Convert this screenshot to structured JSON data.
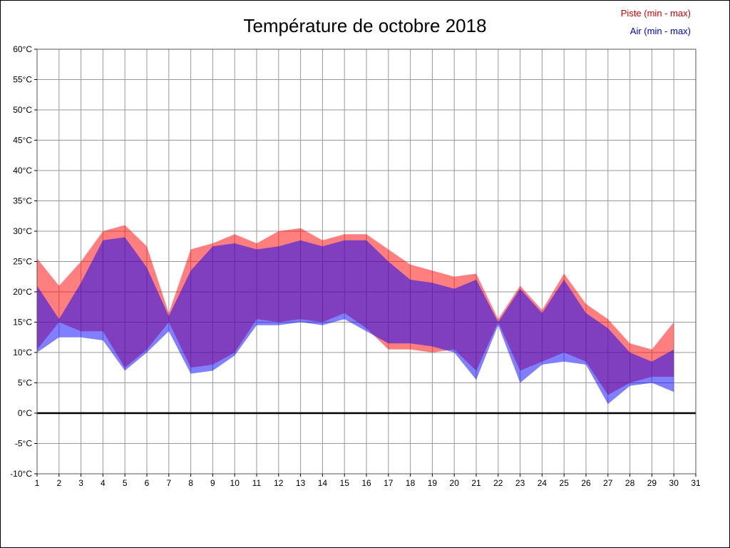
{
  "chart_data": {
    "type": "area",
    "title": "Température de octobre 2018",
    "legend": [
      {
        "label": "Piste (min - max)",
        "color": "#cc0000"
      },
      {
        "label": "Air (min - max)",
        "color": "#0000cc"
      }
    ],
    "xlabel": "",
    "ylabel": "",
    "xlim": [
      1,
      31
    ],
    "ylim": [
      -10,
      60
    ],
    "grid": true,
    "grid_color": "#999999",
    "x_tick_values": [
      1,
      2,
      3,
      4,
      5,
      6,
      7,
      8,
      9,
      10,
      11,
      12,
      13,
      14,
      15,
      16,
      17,
      18,
      19,
      20,
      21,
      22,
      23,
      24,
      25,
      26,
      27,
      28,
      29,
      30,
      31
    ],
    "y_tick_values": [
      60,
      55,
      50,
      45,
      40,
      35,
      30,
      25,
      20,
      15,
      10,
      5,
      0,
      -5,
      -10
    ],
    "y_tick_suffix": "°C",
    "days": [
      1,
      2,
      3,
      4,
      5,
      6,
      7,
      8,
      9,
      10,
      11,
      12,
      13,
      14,
      15,
      16,
      17,
      18,
      19,
      20,
      21,
      22,
      23,
      24,
      25,
      26,
      27,
      28,
      29,
      30
    ],
    "series": [
      {
        "name": "piste_min",
        "values": [
          10.5,
          15,
          13.5,
          13.5,
          7.5,
          10.5,
          15,
          7.5,
          8,
          10,
          15.5,
          15,
          15.5,
          15,
          16.5,
          14,
          10.5,
          10.5,
          10,
          10.5,
          7,
          15,
          7,
          8.5,
          10,
          8.5,
          3,
          5,
          6,
          6
        ]
      },
      {
        "name": "piste_max",
        "values": [
          25.5,
          21,
          25,
          30,
          31,
          27.5,
          16.5,
          27,
          28,
          29.5,
          28,
          30,
          30.5,
          28.5,
          29.5,
          29.5,
          27,
          24.5,
          23.5,
          22.5,
          23,
          15.5,
          21,
          17,
          23,
          18,
          15.5,
          11.5,
          10.5,
          15
        ]
      },
      {
        "name": "air_min",
        "values": [
          10,
          12.5,
          12.5,
          12,
          7,
          10,
          13.5,
          6.5,
          7,
          9.5,
          14.5,
          14.5,
          15,
          14.5,
          15.5,
          13.5,
          11.5,
          11.5,
          11,
          10,
          5.5,
          14.5,
          5,
          8,
          8.5,
          8,
          1.5,
          4.5,
          5,
          3.5
        ]
      },
      {
        "name": "air_max",
        "values": [
          21,
          15.5,
          21.5,
          28.5,
          29,
          24,
          16,
          23.5,
          27.5,
          28,
          27,
          27.5,
          28.5,
          27.5,
          28.5,
          28.5,
          25,
          22,
          21.5,
          20.5,
          22,
          15,
          20.5,
          16.5,
          22,
          16.5,
          14,
          10,
          8.5,
          10.5
        ]
      }
    ],
    "colors": {
      "piste": "#ff0000",
      "air": "#0000ff"
    },
    "fill_opacity": 0.5,
    "zero_line": {
      "value": 0,
      "color": "#000000",
      "width": 2.5
    }
  }
}
